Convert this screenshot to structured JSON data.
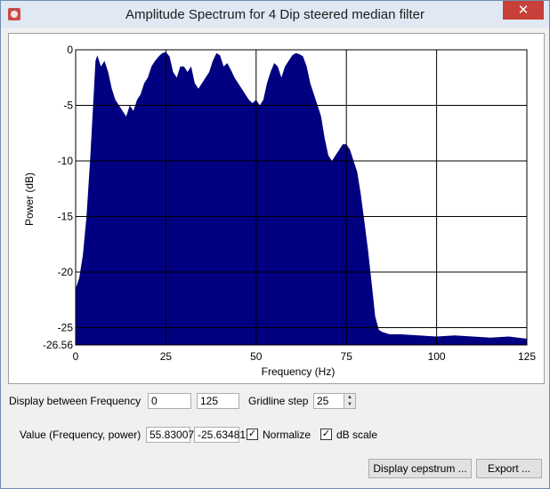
{
  "window": {
    "title": "Amplitude Spectrum for 4 Dip steered median filter",
    "close_glyph": "✕",
    "icon": "app-icon"
  },
  "chart_data": {
    "type": "area",
    "xlabel": "Frequency (Hz)",
    "ylabel": "Power (dB)",
    "xlim": [
      0,
      125
    ],
    "ylim": [
      -26.56,
      0
    ],
    "x_ticks": [
      "0",
      "25",
      "50",
      "75",
      "100",
      "125"
    ],
    "y_ticks": [
      "0",
      "-5",
      "-10",
      "-15",
      "-20",
      "-25",
      "-26.56"
    ],
    "grid": true,
    "fill_color": "#000080",
    "x": [
      0,
      1,
      2,
      3,
      4,
      5,
      5.5,
      6,
      7,
      8,
      9,
      10,
      11,
      12,
      13,
      14,
      15,
      16,
      17,
      18,
      19,
      20,
      21,
      22,
      23,
      24,
      25,
      26,
      27,
      28,
      29,
      30,
      31,
      32,
      33,
      34,
      35,
      36,
      37,
      38,
      39,
      40,
      41,
      42,
      43,
      44,
      45,
      46,
      47,
      48,
      49,
      50,
      51,
      52,
      53,
      54,
      55,
      56,
      57,
      58,
      59,
      60,
      61,
      62,
      63,
      64,
      65,
      66,
      67,
      68,
      69,
      70,
      71,
      72,
      73,
      74,
      75,
      76,
      77,
      78,
      79,
      80,
      81,
      82,
      83,
      84,
      85,
      86,
      87,
      90,
      95,
      100,
      105,
      110,
      115,
      120,
      125
    ],
    "values": [
      -21.5,
      -20.5,
      -18.5,
      -15,
      -10,
      -4,
      -1,
      -0.5,
      -1.5,
      -1,
      -2,
      -3.5,
      -4.5,
      -5,
      -5.5,
      -6,
      -5,
      -5.5,
      -4.5,
      -4,
      -3,
      -2.5,
      -1.5,
      -1,
      -0.6,
      -0.3,
      -0.2,
      -0.6,
      -2,
      -2.5,
      -1.5,
      -1.5,
      -2,
      -1.5,
      -3,
      -3.5,
      -3,
      -2.5,
      -2,
      -1,
      -0.3,
      -0.5,
      -1.5,
      -1.2,
      -1.8,
      -2.5,
      -3,
      -3.5,
      -4,
      -4.5,
      -4.8,
      -4.5,
      -5,
      -4.5,
      -3,
      -2,
      -1.2,
      -1.5,
      -2.5,
      -1.5,
      -1,
      -0.5,
      -0.3,
      -0.4,
      -0.6,
      -1.5,
      -3,
      -4,
      -5,
      -6,
      -8,
      -9.5,
      -10,
      -9.5,
      -9,
      -8.5,
      -8.5,
      -9,
      -10,
      -11,
      -13,
      -15.5,
      -18,
      -21,
      -24,
      -25.2,
      -25.4,
      -25.5,
      -25.6,
      -25.6,
      -25.7,
      -25.8,
      -25.7,
      -25.8,
      -25.9,
      -25.8,
      -26
    ]
  },
  "controls": {
    "freq_label": "Display between Frequency",
    "freq_min": "0",
    "freq_max": "125",
    "gridline_label": "Gridline step",
    "gridline_value": "25",
    "value_label": "Value (Frequency, power)",
    "value_freq": "55.83007",
    "value_power": "-25.63481",
    "normalize_label": "Normalize",
    "normalize_checked": true,
    "dbscale_label": "dB scale",
    "dbscale_checked": true,
    "display_cepstrum_label": "Display cepstrum ...",
    "export_label": "Export ..."
  }
}
